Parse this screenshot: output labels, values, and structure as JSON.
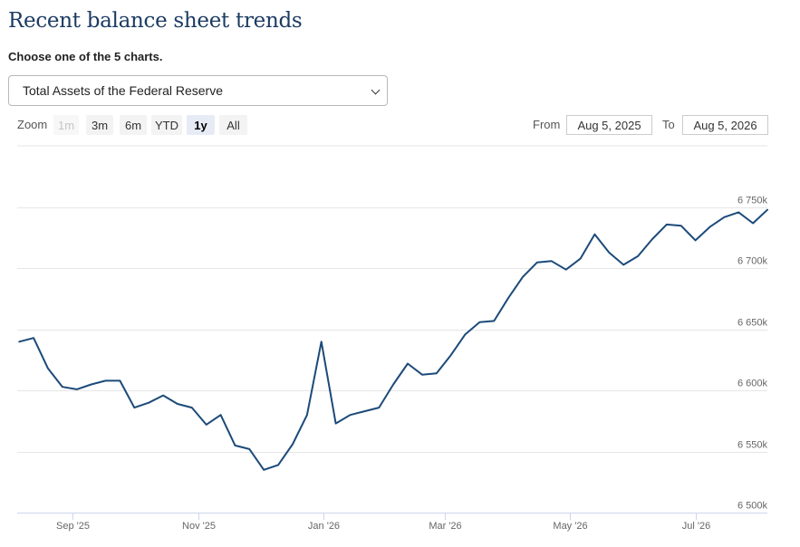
{
  "header": {
    "title": "Recent balance sheet trends",
    "choose_label": "Choose one of the 5 charts."
  },
  "chart_selector": {
    "selected": "Total Assets of the Federal Reserve"
  },
  "range_selector": {
    "zoom_label": "Zoom",
    "buttons": [
      {
        "label": "1m",
        "state": "disabled"
      },
      {
        "label": "3m",
        "state": "normal"
      },
      {
        "label": "6m",
        "state": "normal"
      },
      {
        "label": "YTD",
        "state": "normal"
      },
      {
        "label": "1y",
        "state": "active"
      },
      {
        "label": "All",
        "state": "normal"
      }
    ],
    "from_label": "From",
    "from_value": "Aug 5, 2025",
    "to_label": "To",
    "to_value": "Aug 5, 2026"
  },
  "colors": {
    "line": "#1c4a7a",
    "gridline": "#e6e6e6",
    "title": "#1c3b63"
  },
  "chart_data": {
    "type": "line",
    "title": "",
    "xlabel": "",
    "ylabel": "",
    "ylim": [
      6500,
      6750
    ],
    "xlim": [
      "2025-08-05",
      "2026-08-05"
    ],
    "y_ticks": [
      6500,
      6550,
      6600,
      6650,
      6700,
      6750
    ],
    "y_tick_labels": [
      "6 500k",
      "6 550k",
      "6 600k",
      "6 650k",
      "6 700k",
      "6 750k"
    ],
    "grid": true,
    "y_axis_position": "right",
    "x_ticks": [
      {
        "date": "2025-09-01",
        "label": "Sep '25"
      },
      {
        "date": "2025-11-01",
        "label": "Nov '25"
      },
      {
        "date": "2026-01-01",
        "label": "Jan '26"
      },
      {
        "date": "2026-03-01",
        "label": "Mar '26"
      },
      {
        "date": "2026-05-01",
        "label": "May '26"
      },
      {
        "date": "2026-07-01",
        "label": "Jul '26"
      }
    ],
    "series": [
      {
        "points": [
          [
            "2025-08-06",
            6640
          ],
          [
            "2025-08-13",
            6643
          ],
          [
            "2025-08-20",
            6618
          ],
          [
            "2025-08-27",
            6603
          ],
          [
            "2025-09-03",
            6601
          ],
          [
            "2025-09-10",
            6605
          ],
          [
            "2025-09-17",
            6608
          ],
          [
            "2025-09-24",
            6608
          ],
          [
            "2025-10-01",
            6586
          ],
          [
            "2025-10-08",
            6590
          ],
          [
            "2025-10-15",
            6596
          ],
          [
            "2025-10-22",
            6589
          ],
          [
            "2025-10-29",
            6586
          ],
          [
            "2025-11-05",
            6572
          ],
          [
            "2025-11-12",
            6580
          ],
          [
            "2025-11-19",
            6555
          ],
          [
            "2025-11-26",
            6552
          ],
          [
            "2025-12-03",
            6535
          ],
          [
            "2025-12-10",
            6539
          ],
          [
            "2025-12-17",
            6556
          ],
          [
            "2025-12-24",
            6580
          ],
          [
            "2025-12-31",
            6640
          ],
          [
            "2026-01-07",
            6573
          ],
          [
            "2026-01-14",
            6580
          ],
          [
            "2026-01-21",
            6583
          ],
          [
            "2026-01-28",
            6586
          ],
          [
            "2026-02-04",
            6605
          ],
          [
            "2026-02-11",
            6622
          ],
          [
            "2026-02-18",
            6613
          ],
          [
            "2026-02-25",
            6614
          ],
          [
            "2026-03-04",
            6629
          ],
          [
            "2026-03-11",
            6646
          ],
          [
            "2026-03-18",
            6656
          ],
          [
            "2026-03-25",
            6657
          ],
          [
            "2026-04-01",
            6676
          ],
          [
            "2026-04-08",
            6693
          ],
          [
            "2026-04-15",
            6705
          ],
          [
            "2026-04-22",
            6706
          ],
          [
            "2026-04-29",
            6699
          ],
          [
            "2026-05-06",
            6708
          ],
          [
            "2026-05-13",
            6728
          ],
          [
            "2026-05-20",
            6713
          ],
          [
            "2026-05-27",
            6703
          ],
          [
            "2026-06-03",
            6710
          ],
          [
            "2026-06-10",
            6724
          ],
          [
            "2026-06-17",
            6736
          ],
          [
            "2026-06-24",
            6735
          ],
          [
            "2026-07-01",
            6723
          ],
          [
            "2026-07-08",
            6734
          ],
          [
            "2026-07-15",
            6742
          ],
          [
            "2026-07-22",
            6746
          ],
          [
            "2026-07-29",
            6737
          ],
          [
            "2026-08-05",
            6748
          ]
        ]
      }
    ]
  }
}
